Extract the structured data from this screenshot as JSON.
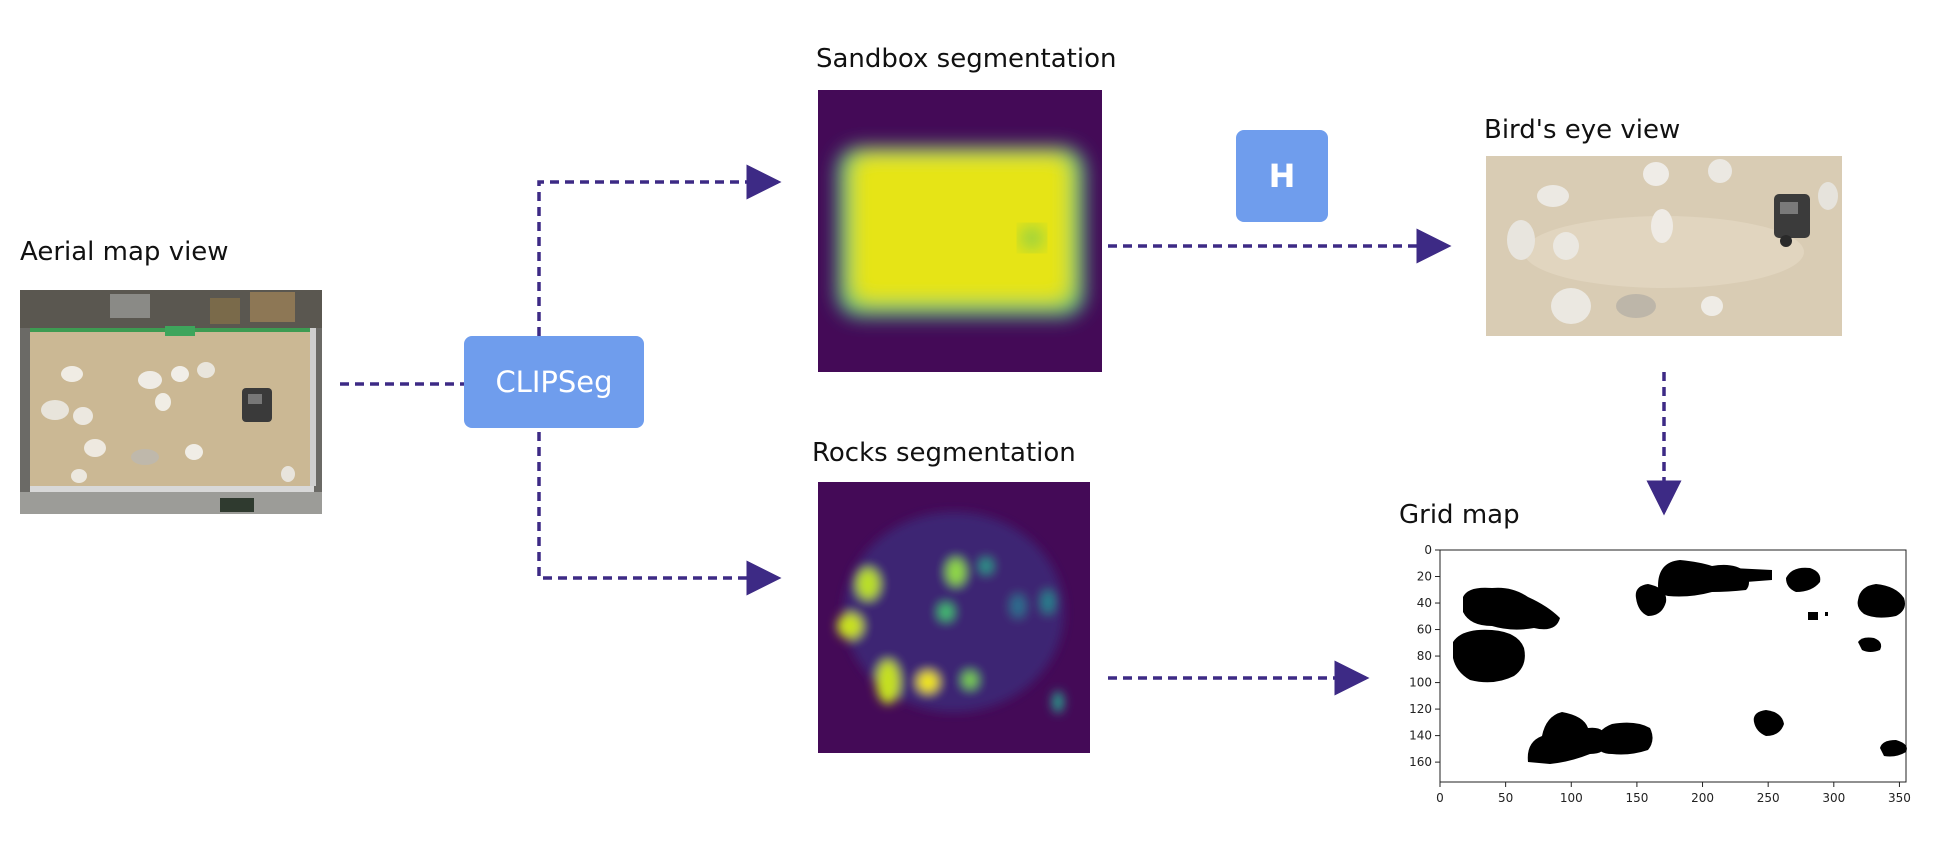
{
  "labels": {
    "aerial": "Aerial map view",
    "sandbox": "Sandbox segmentation",
    "rocks": "Rocks segmentation",
    "birds_eye": "Bird's eye view",
    "grid": "Grid map"
  },
  "nodes": {
    "clipseg": "CLIPSeg",
    "homography": "H"
  },
  "grid_axes": {
    "y_ticks": [
      "0",
      "20",
      "40",
      "60",
      "80",
      "100",
      "120",
      "140",
      "160"
    ],
    "x_ticks": [
      "0",
      "50",
      "100",
      "150",
      "200",
      "250",
      "300",
      "350"
    ]
  },
  "colors": {
    "arrow": "#3d2a85",
    "node": "#6f9ded"
  }
}
